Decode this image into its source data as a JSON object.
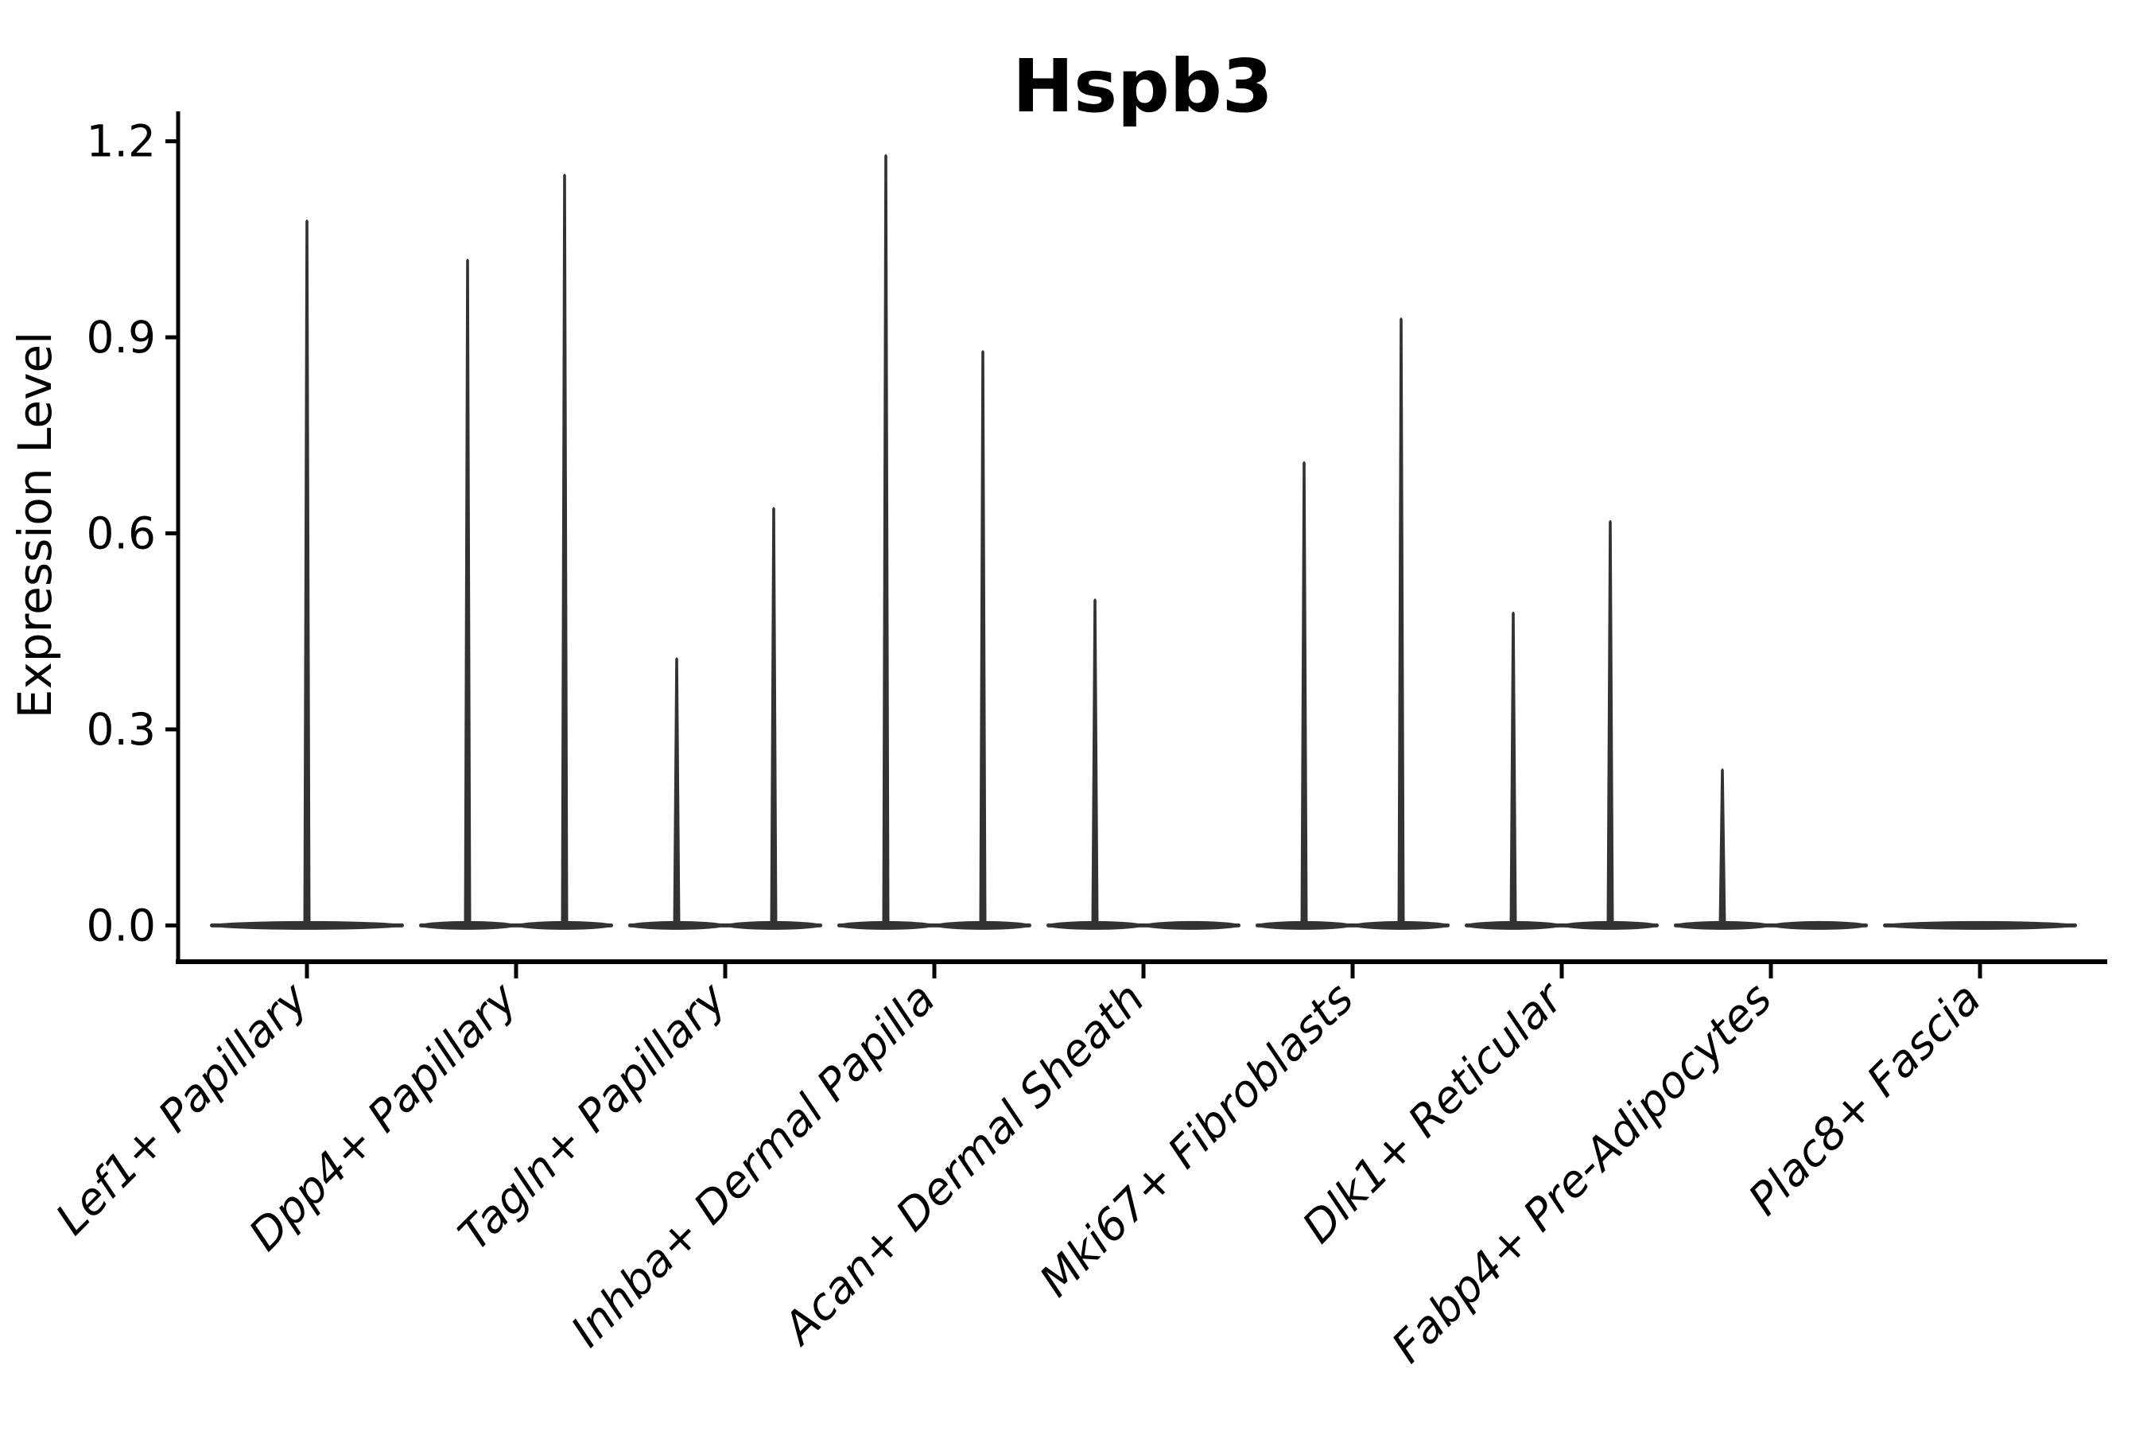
{
  "figure": {
    "background": "#ffffff"
  },
  "chart_data": {
    "type": "violin",
    "title": "Hspb3",
    "xlabel": "",
    "ylabel": "Expression Level",
    "ylim": [
      0,
      1.2
    ],
    "yticks": [
      0.0,
      0.3,
      0.6,
      0.9,
      1.2
    ],
    "ytick_labels": [
      "0.0",
      "0.3",
      "0.6",
      "0.9",
      "1.2"
    ],
    "grid": "off",
    "legend": "none",
    "categories": [
      "Lef1+ Papillary",
      "Dpp4+ Papillary",
      "Tagln+ Papillary",
      "Inhba+ Dermal Papilla",
      "Acan+ Dermal Sheath",
      "Mki67+ Fibroblasts",
      "Dlk1+ Reticular",
      "Fabp4+ Pre-Adipocytes",
      "Plac8+ Fascia"
    ],
    "violins": [
      {
        "category": "Lef1+ Papillary",
        "parts": [
          {
            "pos": "center",
            "max": 1.08
          }
        ]
      },
      {
        "category": "Dpp4+ Papillary",
        "parts": [
          {
            "pos": "left",
            "max": 1.02
          },
          {
            "pos": "right",
            "max": 1.15
          }
        ]
      },
      {
        "category": "Tagln+ Papillary",
        "parts": [
          {
            "pos": "left",
            "max": 0.41
          },
          {
            "pos": "right",
            "max": 0.64
          }
        ]
      },
      {
        "category": "Inhba+ Dermal Papilla",
        "parts": [
          {
            "pos": "left",
            "max": 1.18
          },
          {
            "pos": "right",
            "max": 0.88
          }
        ]
      },
      {
        "category": "Acan+ Dermal Sheath",
        "parts": [
          {
            "pos": "left",
            "max": 0.5
          },
          {
            "pos": "right",
            "max": 0
          }
        ]
      },
      {
        "category": "Mki67+ Fibroblasts",
        "parts": [
          {
            "pos": "left",
            "max": 0.71
          },
          {
            "pos": "right",
            "max": 0.93
          }
        ]
      },
      {
        "category": "Dlk1+ Reticular",
        "parts": [
          {
            "pos": "left",
            "max": 0.48
          },
          {
            "pos": "right",
            "max": 0.62
          }
        ]
      },
      {
        "category": "Fabp4+ Pre-Adipocytes",
        "parts": [
          {
            "pos": "left",
            "max": 0.24
          },
          {
            "pos": "right",
            "max": 0
          }
        ]
      },
      {
        "category": "Plac8+ Fascia",
        "parts": [
          {
            "pos": "center",
            "max": 0
          }
        ]
      }
    ],
    "colors": {
      "violin_fill": "#333333",
      "axis": "#000000",
      "text": "#000000"
    }
  }
}
